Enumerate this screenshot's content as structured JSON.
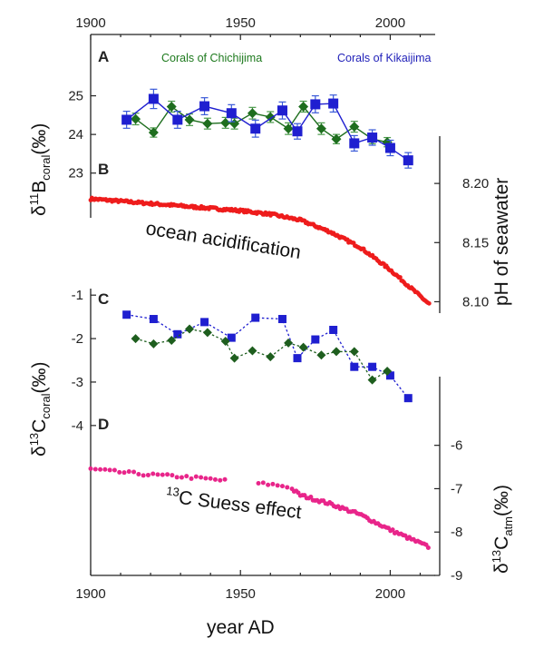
{
  "chart_data": [
    {
      "panel": "A",
      "type": "line",
      "ylabel_main": "δ",
      "ylabel_sup": "11",
      "ylabel_mid": "B",
      "ylabel_sub": "coral",
      "ylabel_unit": "(‰)",
      "ylim": [
        22.5,
        25.6
      ],
      "yticks": [
        "23",
        "24",
        "25"
      ],
      "xlim": [
        1900,
        2015
      ],
      "xticks": [
        "1900",
        "1950",
        "2000"
      ],
      "series": [
        {
          "name": "Corals of Chichijima",
          "color": "#1e6e1e",
          "errcolor": "#4a9a4a",
          "marker": "diamond",
          "x": [
            1915,
            1921,
            1927,
            1933,
            1939,
            1945,
            1948,
            1954,
            1960,
            1966,
            1971,
            1977,
            1982,
            1988,
            1994,
            1999
          ],
          "y": [
            24.4,
            24.05,
            24.72,
            24.38,
            24.28,
            24.3,
            24.28,
            24.55,
            24.45,
            24.15,
            24.72,
            24.15,
            23.88,
            24.2,
            23.88,
            23.8
          ],
          "err": [
            0.15,
            0.12,
            0.14,
            0.15,
            0.14,
            0.14,
            0.14,
            0.15,
            0.14,
            0.15,
            0.14,
            0.15,
            0.12,
            0.14,
            0.12,
            0.12
          ]
        },
        {
          "name": "Corals of Kikaijima",
          "color": "#1f1fd0",
          "errcolor": "#3a5ad8",
          "marker": "square",
          "x": [
            1912,
            1921,
            1929,
            1938,
            1947,
            1955,
            1964,
            1969,
            1975,
            1981,
            1988,
            1994,
            2000,
            2006
          ],
          "y": [
            24.38,
            24.92,
            24.38,
            24.73,
            24.55,
            24.15,
            24.62,
            24.08,
            24.78,
            24.8,
            23.77,
            23.92,
            23.65,
            23.33
          ],
          "err": [
            0.22,
            0.25,
            0.22,
            0.22,
            0.22,
            0.22,
            0.22,
            0.2,
            0.22,
            0.22,
            0.2,
            0.2,
            0.2,
            0.2
          ]
        }
      ]
    },
    {
      "panel": "B",
      "type": "scatter",
      "ylabel": "pH of seawater",
      "ylim": [
        8.085,
        8.24
      ],
      "yticks": [
        "8.10",
        "8.15",
        "8.20"
      ],
      "annotation": "ocean acidification",
      "series": [
        {
          "color": "#ee1c1c",
          "x": [
            1900,
            1910,
            1920,
            1930,
            1940,
            1950,
            1960,
            1970,
            1980,
            1990,
            2000,
            2013
          ],
          "y": [
            8.187,
            8.185,
            8.183,
            8.181,
            8.179,
            8.177,
            8.174,
            8.169,
            8.159,
            8.146,
            8.127,
            8.098
          ]
        }
      ]
    },
    {
      "panel": "C",
      "type": "line",
      "ylabel_main": "δ",
      "ylabel_sup": "13",
      "ylabel_mid": "C",
      "ylabel_sub": "coral",
      "ylabel_unit": "(‰)",
      "ylim": [
        -4.4,
        -0.85
      ],
      "yticks": [
        "-1",
        "-2",
        "-3",
        "-4"
      ],
      "series": [
        {
          "color": "#1f1fd0",
          "marker": "square",
          "x": [
            1912,
            1921,
            1929,
            1938,
            1947,
            1955,
            1964,
            1969,
            1975,
            1981,
            1988,
            1994,
            2000,
            2006
          ],
          "y": [
            -1.45,
            -1.55,
            -1.9,
            -1.62,
            -1.98,
            -1.52,
            -1.55,
            -2.45,
            -2.02,
            -1.8,
            -2.65,
            -2.65,
            -2.85,
            -3.37
          ]
        },
        {
          "color": "#1e5e1e",
          "marker": "diamond",
          "x": [
            1915,
            1921,
            1927,
            1933,
            1939,
            1945,
            1948,
            1954,
            1960,
            1966,
            1971,
            1977,
            1982,
            1988,
            1994,
            1999
          ],
          "y": [
            -2.0,
            -2.12,
            -2.04,
            -1.78,
            -1.86,
            -2.06,
            -2.45,
            -2.28,
            -2.42,
            -2.1,
            -2.2,
            -2.38,
            -2.3,
            -2.3,
            -2.95,
            -2.75
          ]
        }
      ]
    },
    {
      "panel": "D",
      "type": "scatter",
      "ylabel_main": "δ",
      "ylabel_sup": "13",
      "ylabel_mid": "C",
      "ylabel_sub": "atm",
      "ylabel_unit": "(‰)",
      "ylim": [
        -9.0,
        -5.4
      ],
      "yticks": [
        "-6",
        "-7",
        "-8",
        "-9"
      ],
      "annotation_sup": "13",
      "annotation": "C Suess effect",
      "series": [
        {
          "color": "#e8258a",
          "x": [
            1900,
            1910,
            1920,
            1930,
            1940,
            1950,
            1960,
            1966,
            1970,
            1980,
            1990,
            2000,
            2013
          ],
          "y": [
            -6.55,
            -6.62,
            -6.68,
            -6.72,
            -6.78,
            -6.85,
            -6.9,
            -6.95,
            -7.15,
            -7.35,
            -7.6,
            -7.95,
            -8.35
          ]
        }
      ]
    }
  ],
  "xlabel": "year AD"
}
